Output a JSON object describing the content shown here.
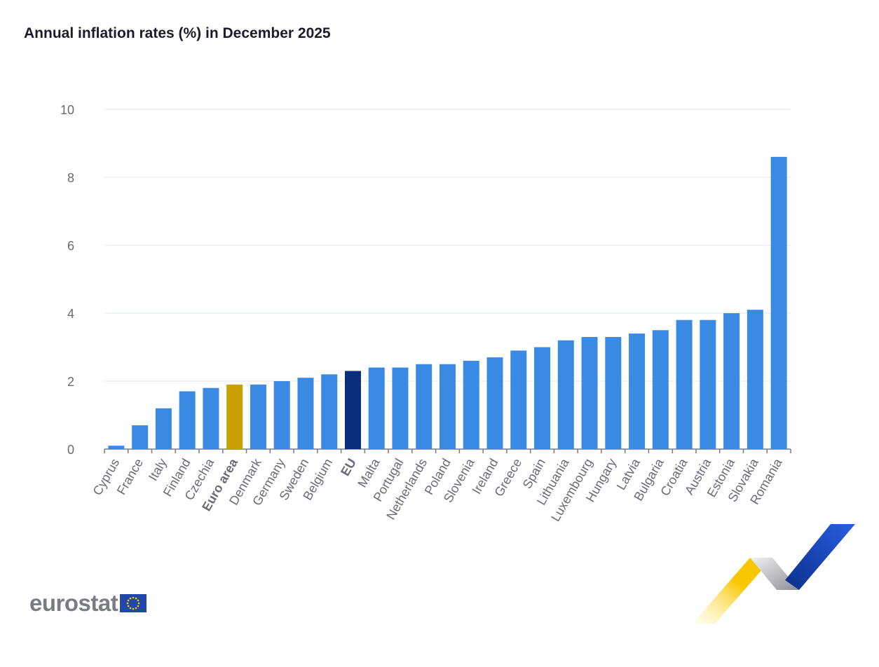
{
  "title": "Annual inflation rates (%) in December 2025",
  "chart_data": {
    "type": "bar",
    "title": "Annual inflation rates (%) in December 2025",
    "xlabel": "",
    "ylabel": "",
    "ylim": [
      0,
      10
    ],
    "yticks": [
      0,
      2,
      4,
      6,
      8,
      10
    ],
    "grid": true,
    "categories": [
      "Cyprus",
      "France",
      "Italy",
      "Finland",
      "Czechia",
      "Euro area",
      "Denmark",
      "Germany",
      "Sweden",
      "Belgium",
      "EU",
      "Malta",
      "Portugal",
      "Netherlands",
      "Poland",
      "Slovenia",
      "Ireland",
      "Greece",
      "Spain",
      "Lithuania",
      "Luxembourg",
      "Hungary",
      "Latvia",
      "Bulgaria",
      "Croatia",
      "Austria",
      "Estonia",
      "Slovakia",
      "Romania"
    ],
    "values": [
      0.1,
      0.7,
      1.2,
      1.7,
      1.8,
      1.9,
      1.9,
      2.0,
      2.1,
      2.2,
      2.3,
      2.4,
      2.4,
      2.5,
      2.5,
      2.6,
      2.7,
      2.9,
      3.0,
      3.2,
      3.3,
      3.3,
      3.4,
      3.5,
      3.8,
      3.8,
      4.0,
      4.1,
      8.6
    ],
    "bold_categories": [
      "Euro area",
      "EU"
    ],
    "colors": {
      "default": "#3a8ae3",
      "Euro area": "#c9a100",
      "EU": "#0b2e7c"
    }
  },
  "logo": {
    "text": "eurostat"
  }
}
